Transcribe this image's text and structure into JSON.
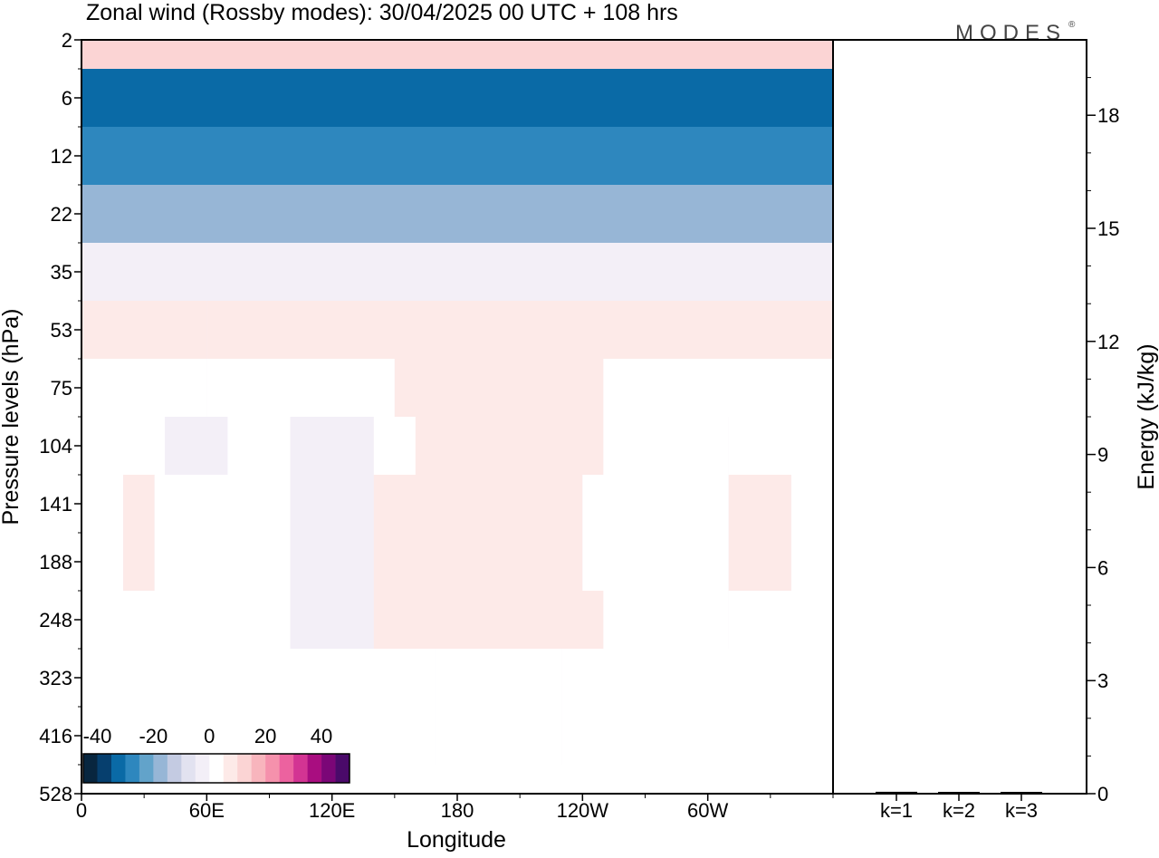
{
  "chart_data": [
    {
      "type": "heatmap",
      "title": "Zonal wind (Rossby modes):  30/04/2025  00 UTC  + 108 hrs",
      "xlabel": "Longitude",
      "ylabel": "Pressure levels (hPa)",
      "x_ticks": [
        "0",
        "60E",
        "120E",
        "180",
        "120W",
        "60W"
      ],
      "y_ticks": [
        "2",
        "6",
        "12",
        "22",
        "35",
        "53",
        "75",
        "104",
        "141",
        "188",
        "248",
        "323",
        "416",
        "528"
      ],
      "colorbar": {
        "ticks": [
          "-40",
          "-20",
          "0",
          "20",
          "40"
        ],
        "colors": [
          "#08263f",
          "#063f6e",
          "#0a6aa6",
          "#2e87be",
          "#62a3ca",
          "#97b6d6",
          "#c4cbe2",
          "#e2e2f0",
          "#f3eff7",
          "#ffffff",
          "#fdeae8",
          "#fbd4d4",
          "#f8b5bd",
          "#f591ac",
          "#ec629f",
          "#d33493",
          "#a90d80",
          "#7b0677",
          "#4a0a6a"
        ]
      },
      "levels": [
        {
          "p": "2",
          "bands": [
            {
              "start": 0,
              "end": 360,
              "u": 14
            }
          ]
        },
        {
          "p": "6",
          "bands": [
            {
              "start": 0,
              "end": 360,
              "u": -33
            }
          ]
        },
        {
          "p": "12",
          "bands": [
            {
              "start": 0,
              "end": 360,
              "u": -28
            }
          ]
        },
        {
          "p": "22",
          "bands": [
            {
              "start": 0,
              "end": 360,
              "u": -17
            }
          ]
        },
        {
          "p": "35",
          "bands": [
            {
              "start": 0,
              "end": 360,
              "u": -3
            }
          ]
        },
        {
          "p": "53",
          "bands": [
            {
              "start": 0,
              "end": 60,
              "u": 6
            },
            {
              "start": 60,
              "end": 360,
              "u": 6
            }
          ]
        },
        {
          "p": "75",
          "bands": [
            {
              "start": 0,
              "end": 60,
              "u": 3
            },
            {
              "start": 60,
              "end": 150,
              "u": 4
            },
            {
              "start": 150,
              "end": 250,
              "u": 6
            },
            {
              "start": 250,
              "end": 360,
              "u": 3
            }
          ]
        },
        {
          "p": "104",
          "bands": [
            {
              "start": 0,
              "end": 40,
              "u": 2
            },
            {
              "start": 40,
              "end": 70,
              "u": -3
            },
            {
              "start": 70,
              "end": 100,
              "u": 1
            },
            {
              "start": 100,
              "end": 140,
              "u": -4
            },
            {
              "start": 140,
              "end": 160,
              "u": 1
            },
            {
              "start": 160,
              "end": 250,
              "u": 6
            },
            {
              "start": 250,
              "end": 310,
              "u": 2
            },
            {
              "start": 310,
              "end": 360,
              "u": 4
            }
          ]
        },
        {
          "p": "141",
          "bands": [
            {
              "start": 0,
              "end": 20,
              "u": 1
            },
            {
              "start": 20,
              "end": 35,
              "u": 5
            },
            {
              "start": 35,
              "end": 100,
              "u": 1
            },
            {
              "start": 100,
              "end": 140,
              "u": -4
            },
            {
              "start": 140,
              "end": 180,
              "u": 5
            },
            {
              "start": 180,
              "end": 240,
              "u": 9
            },
            {
              "start": 240,
              "end": 310,
              "u": 2
            },
            {
              "start": 310,
              "end": 340,
              "u": 9
            },
            {
              "start": 340,
              "end": 360,
              "u": 2
            }
          ]
        },
        {
          "p": "188",
          "bands": [
            {
              "start": 0,
              "end": 20,
              "u": 1
            },
            {
              "start": 20,
              "end": 35,
              "u": 5
            },
            {
              "start": 35,
              "end": 100,
              "u": 1
            },
            {
              "start": 100,
              "end": 140,
              "u": -4
            },
            {
              "start": 140,
              "end": 180,
              "u": 5
            },
            {
              "start": 180,
              "end": 240,
              "u": 9
            },
            {
              "start": 240,
              "end": 310,
              "u": 2
            },
            {
              "start": 310,
              "end": 340,
              "u": 6
            },
            {
              "start": 340,
              "end": 360,
              "u": 2
            }
          ]
        },
        {
          "p": "248",
          "bands": [
            {
              "start": 0,
              "end": 100,
              "u": 1
            },
            {
              "start": 100,
              "end": 140,
              "u": -4
            },
            {
              "start": 140,
              "end": 250,
              "u": 5
            },
            {
              "start": 250,
              "end": 310,
              "u": 1
            },
            {
              "start": 310,
              "end": 360,
              "u": 4
            }
          ]
        },
        {
          "p": "323",
          "bands": [
            {
              "start": 0,
              "end": 170,
              "u": 1
            },
            {
              "start": 170,
              "end": 230,
              "u": 4
            },
            {
              "start": 230,
              "end": 360,
              "u": 1
            }
          ]
        },
        {
          "p": "416",
          "bands": [
            {
              "start": 0,
              "end": 170,
              "u": 1
            },
            {
              "start": 170,
              "end": 230,
              "u": 3
            },
            {
              "start": 230,
              "end": 360,
              "u": 1
            }
          ]
        },
        {
          "p": "528",
          "bands": [
            {
              "start": 0,
              "end": 360,
              "u": 1
            }
          ]
        }
      ]
    },
    {
      "type": "bar",
      "categories": [
        "k=1",
        "k=2",
        "k=3"
      ],
      "values": [
        0.05,
        0.03,
        0.03
      ],
      "ylabel": "Energy (kJ/kg)",
      "y_ticks": [
        "0",
        "3",
        "6",
        "9",
        "12",
        "15",
        "18"
      ],
      "ylim": [
        0,
        20
      ],
      "bar_color": "#000000"
    }
  ],
  "logo": {
    "text": "MODES",
    "mark": "®"
  }
}
